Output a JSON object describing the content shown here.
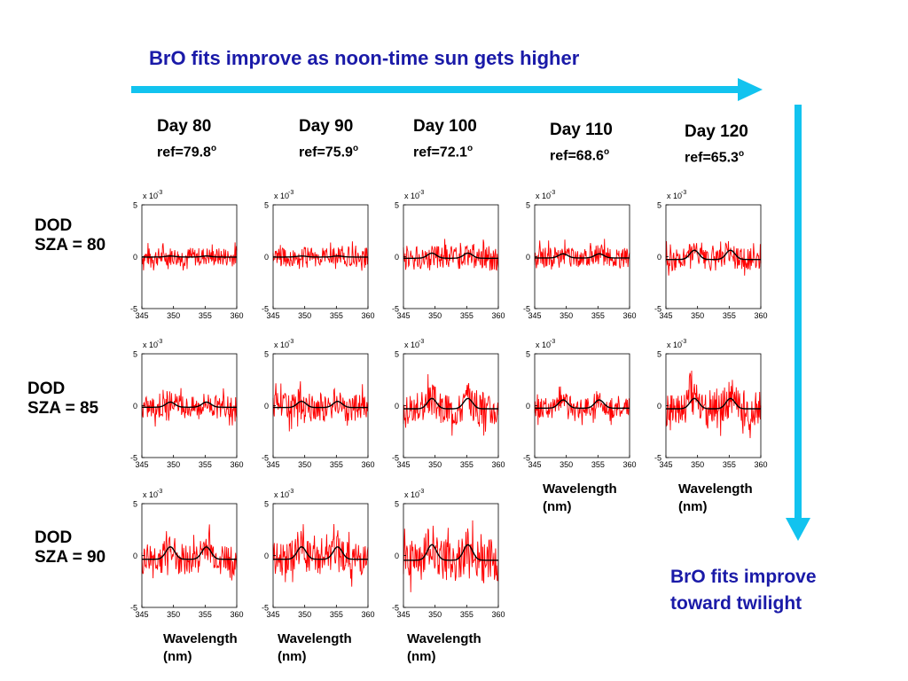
{
  "headline_top": "BrO fits improve as noon-time sun gets higher",
  "headline_side": [
    "BrO fits improve",
    "toward twilight"
  ],
  "colors": {
    "arrow": "#12c3ef",
    "headline": "#1a1aa8",
    "fit": "#ff0000",
    "model": "#000000"
  },
  "columns": [
    {
      "day": "Day 80",
      "ref": "ref=79.8",
      "deg": "o"
    },
    {
      "day": "Day 90",
      "ref": "ref=75.9",
      "deg": "o"
    },
    {
      "day": "Day 100",
      "ref": "ref=72.1",
      "deg": "o"
    },
    {
      "day": "Day 110",
      "ref": "ref=68.6",
      "deg": "o"
    },
    {
      "day": "Day 120",
      "ref": "ref=65.3",
      "deg": "o"
    }
  ],
  "rows": [
    {
      "line1": "DOD",
      "line2": "SZA = 80"
    },
    {
      "line1": "DOD",
      "line2": "SZA = 85"
    },
    {
      "line1": "DOD",
      "line2": "SZA = 90"
    }
  ],
  "xlabel": [
    "Wavelength",
    "(nm)"
  ],
  "chart_data": {
    "type": "line",
    "x_ticks": [
      345,
      350,
      355,
      360
    ],
    "y_ticks": [
      -5,
      0,
      5
    ],
    "y_multiplier": "x 10",
    "y_exponent": "-3",
    "xlim": [
      345,
      360
    ],
    "ylim": [
      -5,
      5
    ],
    "series": [
      {
        "name": "",
        "color": "#ff0000"
      },
      {
        "name": "",
        "color": "#000000"
      }
    ],
    "panels": [
      {
        "row": 0,
        "col": 0,
        "noise": 0.9,
        "bump": 0.1
      },
      {
        "row": 0,
        "col": 1,
        "noise": 0.9,
        "bump": 0.1
      },
      {
        "row": 0,
        "col": 2,
        "noise": 1.2,
        "bump": 0.5
      },
      {
        "row": 0,
        "col": 3,
        "noise": 1.0,
        "bump": 0.4
      },
      {
        "row": 0,
        "col": 4,
        "noise": 1.1,
        "bump": 0.9
      },
      {
        "row": 1,
        "col": 0,
        "noise": 1.1,
        "bump": 0.5
      },
      {
        "row": 1,
        "col": 1,
        "noise": 1.4,
        "bump": 0.6
      },
      {
        "row": 1,
        "col": 2,
        "noise": 1.6,
        "bump": 1.0
      },
      {
        "row": 1,
        "col": 3,
        "noise": 1.0,
        "bump": 0.8
      },
      {
        "row": 1,
        "col": 4,
        "noise": 1.8,
        "bump": 1.0
      },
      {
        "row": 2,
        "col": 0,
        "noise": 1.5,
        "bump": 1.2
      },
      {
        "row": 2,
        "col": 1,
        "noise": 1.6,
        "bump": 1.2
      },
      {
        "row": 2,
        "col": 2,
        "noise": 2.0,
        "bump": 1.5
      }
    ]
  }
}
